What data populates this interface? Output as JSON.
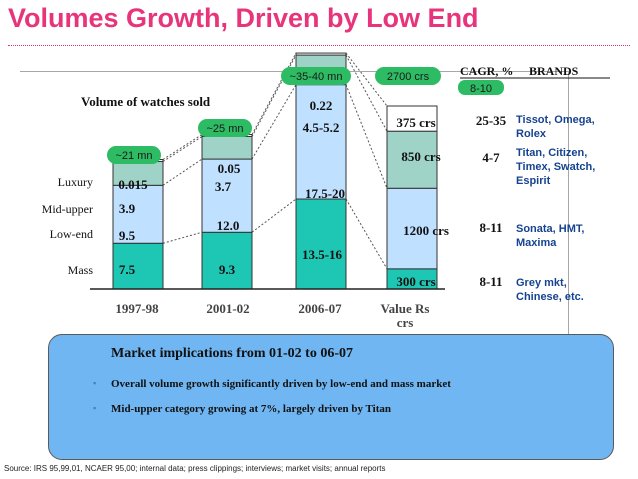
{
  "title": "Volumes Growth, Driven by Low End",
  "source": "Source: IRS 95,99,01, NCAER 95,00; internal data; press clippings; interviews; market visits; annual reports",
  "implications": {
    "title": "Market implications from 01-02 to 06-07",
    "bullets": [
      "Overall volume growth significantly driven by low-end and mass market",
      "Mid-upper category growing at 7%, largely driven by Titan"
    ]
  },
  "chart_data": {
    "type": "bar",
    "title": "Volume of watches sold",
    "categories": [
      "1997-98",
      "2001-02",
      "2006-07",
      "Value Rs crs"
    ],
    "series": [
      {
        "name": "Mass",
        "color": "#1ec7b3",
        "values": [
          7.5,
          9.3,
          14.75,
          300
        ],
        "labels": [
          "7.5",
          "9.3",
          "13.5-16",
          "300 crs"
        ]
      },
      {
        "name": "Low-end",
        "color": "#bfe0ff",
        "values": [
          9.5,
          12.0,
          18.75,
          1200
        ],
        "labels": [
          "9.5",
          "12.0",
          "17.5-20",
          "1200 crs"
        ]
      },
      {
        "name": "Mid-upper",
        "color": "#9fd3c7",
        "values": [
          3.9,
          3.7,
          4.85,
          850
        ],
        "labels": [
          "3.9",
          "3.7",
          "4.5-5.2",
          "850 crs"
        ]
      },
      {
        "name": "Luxury",
        "color": "#ffffff",
        "values": [
          0.015,
          0.05,
          0.22,
          375
        ],
        "labels": [
          "0.015",
          "0.05",
          "0.22",
          "375 crs"
        ]
      }
    ],
    "growth_badges": [
      "~21 mn",
      "~25 mn",
      "~35-40 mn",
      "2700 crs"
    ],
    "cagr": {
      "header": "CAGR, %",
      "overall": "8-10",
      "values": [
        "8-11",
        "8-11",
        "4-7",
        "25-35"
      ]
    },
    "brands": {
      "header": "BRANDS",
      "values": [
        "Grey mkt, Chinese, etc.",
        "Sonata, HMT, Maxima",
        "Titan, Citizen, Timex, Swatch, Espirit",
        "Tissot, Omega, Rolex"
      ]
    }
  }
}
